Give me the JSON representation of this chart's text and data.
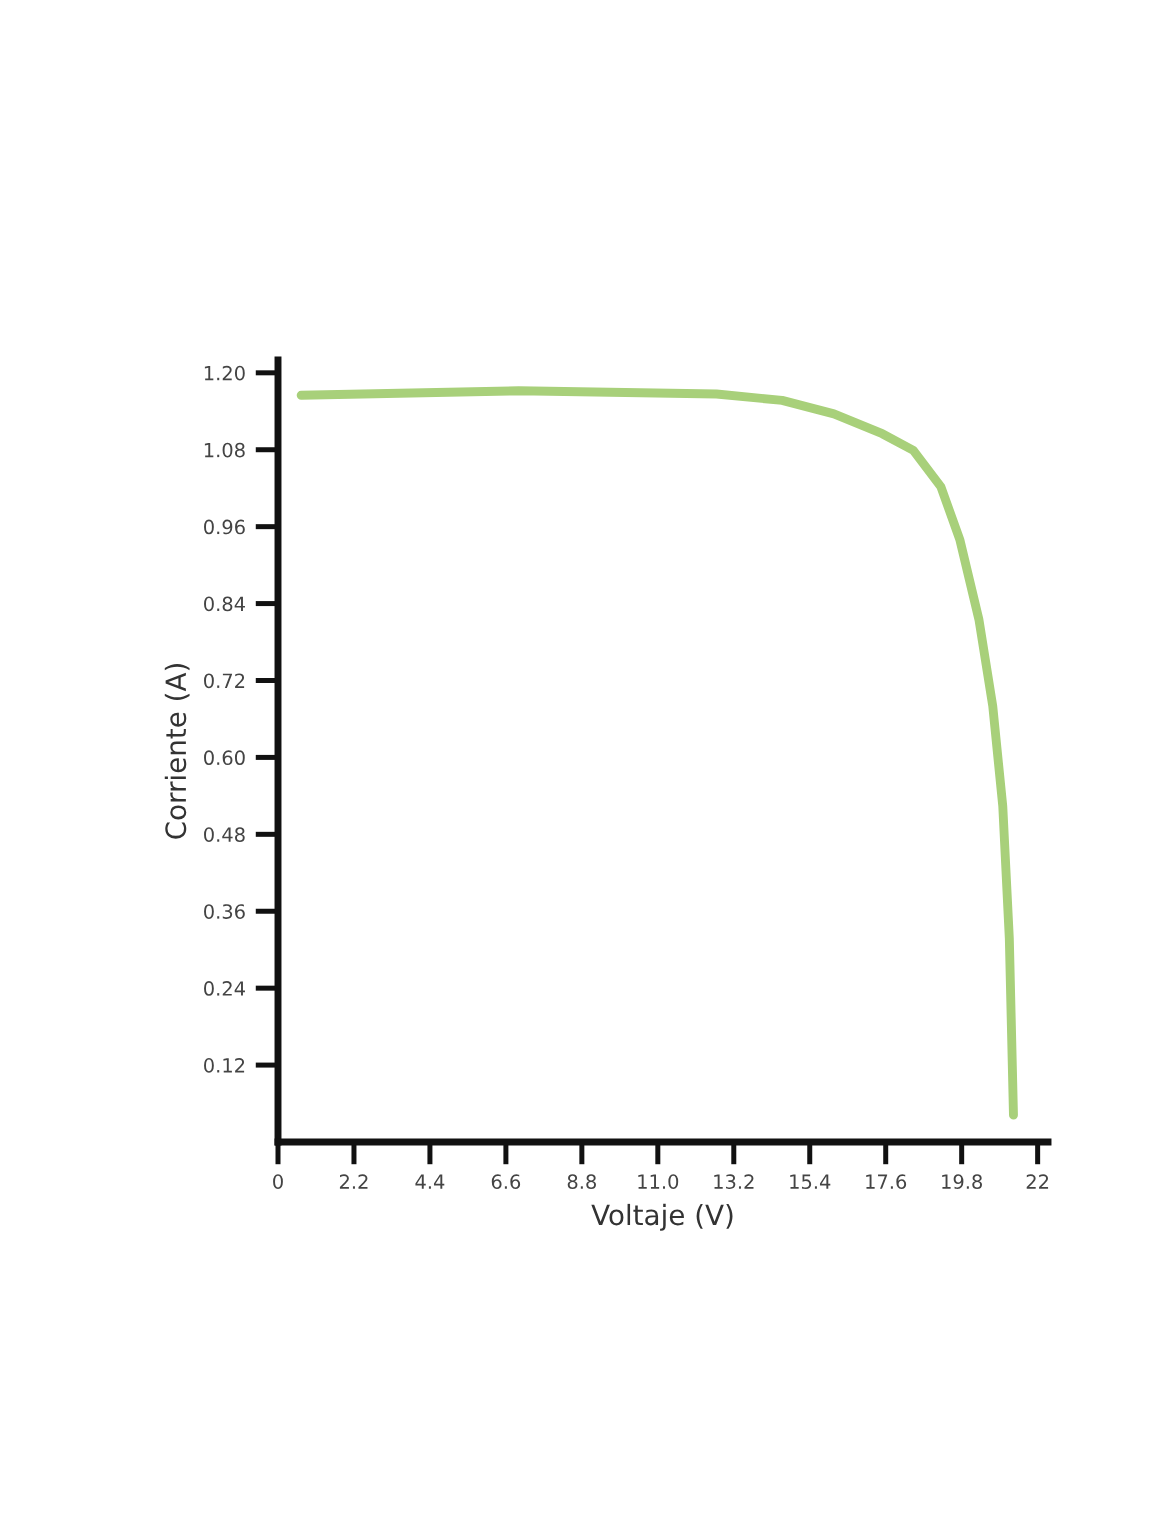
{
  "chart_data": {
    "type": "line",
    "xlabel": "Voltaje (V)",
    "ylabel": "Corriente (A)",
    "x": [
      0.67,
      6.97,
      12.7,
      14.6,
      16.1,
      17.5,
      18.4,
      19.2,
      19.75,
      20.3,
      20.7,
      20.99,
      21.18,
      21.3
    ],
    "series": [
      {
        "color": "#a8d07a",
        "values": [
          1.165,
          1.172,
          1.167,
          1.157,
          1.136,
          1.105,
          1.079,
          1.022,
          0.939,
          0.815,
          0.68,
          0.524,
          0.317,
          0.042
        ]
      }
    ],
    "xlim": [
      0,
      22.3
    ],
    "ylim": [
      0,
      1.22
    ],
    "xticks": [
      0,
      2.2,
      4.4,
      6.6,
      8.8,
      {
        "value": 11,
        "label": "11.0"
      },
      13.2,
      15.4,
      17.6,
      19.8,
      22
    ],
    "yticks": [
      0.12,
      0.24,
      0.36,
      0.48,
      {
        "value": 0.6,
        "label": "0.60"
      },
      0.72,
      0.84,
      0.96,
      1.08,
      {
        "value": 1.2,
        "label": "1.20"
      }
    ],
    "grid": false,
    "legend": false,
    "marker": "none",
    "line_style": "solid"
  }
}
